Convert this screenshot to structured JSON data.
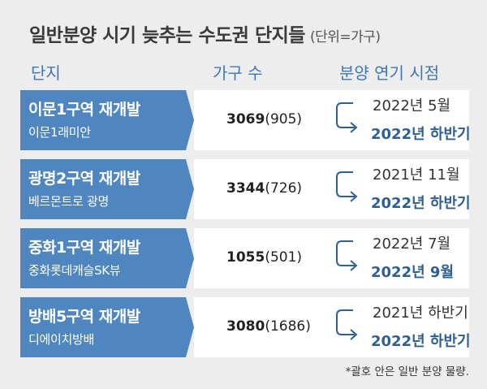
{
  "title": "일반분양 시기 늦추는 수도권 단지들",
  "unit": "(단위=가구)",
  "headers": {
    "complex": "단지",
    "units": "가구 수",
    "schedule": "분양 연기 시점"
  },
  "rows": [
    {
      "name": "이문1구역 재개발",
      "apartment": "이문1래미안",
      "total": "3069",
      "sale": "(905)",
      "original": "2022년 5월",
      "postponed": "2022년 하반기"
    },
    {
      "name": "광명2구역 재개발",
      "apartment": "베르몬트로 광명",
      "total": "3344",
      "sale": "(726)",
      "original": "2021년 11월",
      "postponed": "2022년 하반기"
    },
    {
      "name": "중화1구역 재개발",
      "apartment": "중화롯데캐슬SK뷰",
      "total": "1055",
      "sale": "(501)",
      "original": "2022년 7월",
      "postponed": "2022년 9월"
    },
    {
      "name": "방배5구역 재개발",
      "apartment": "디에이치방배",
      "total": "3080",
      "sale": "(1686)",
      "original": "2021년 하반기",
      "postponed": "2022년 하반기"
    }
  ],
  "footnote": "*괄호 안은 일반 분양 물량.",
  "colors": {
    "accent": "#4f86bf",
    "header_text": "#3f78b5",
    "postponed_text": "#2e5f93"
  },
  "icons": {
    "arrow": "curved-arrow-icon"
  }
}
